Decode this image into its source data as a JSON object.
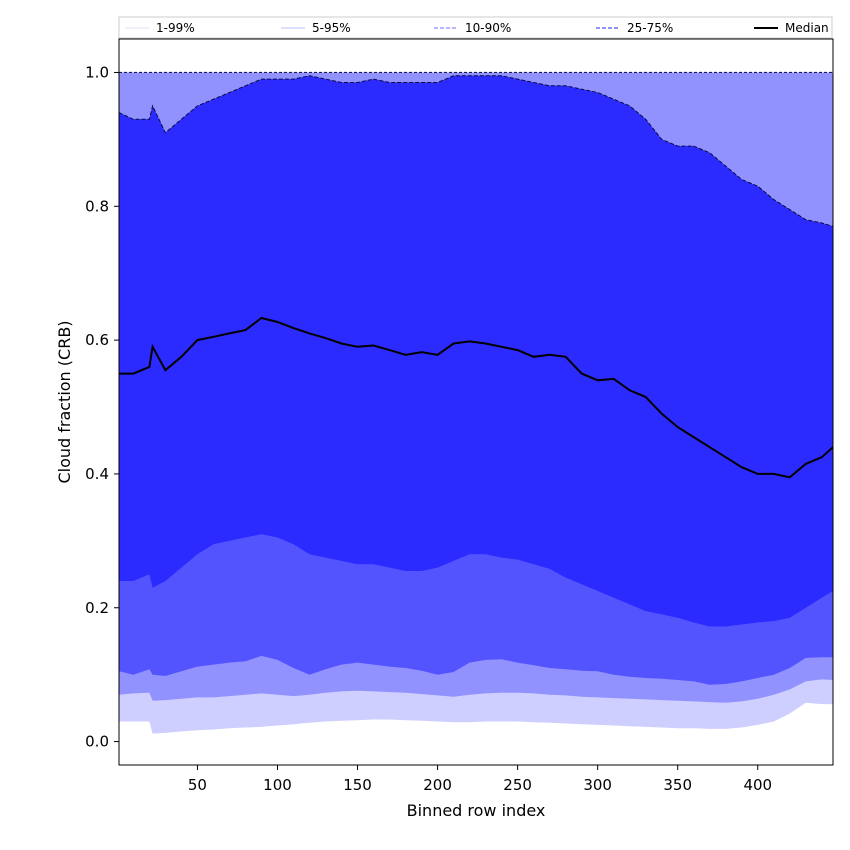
{
  "chart_data": {
    "type": "area",
    "xlabel": "Binned row index",
    "ylabel": "Cloud fraction (CRB)",
    "xlim": [
      1,
      447
    ],
    "ylim": [
      -0.035,
      1.05
    ],
    "x_ticks": [
      50,
      100,
      150,
      200,
      250,
      300,
      350,
      400
    ],
    "y_ticks": [
      0.0,
      0.2,
      0.4,
      0.6,
      0.8,
      1.0
    ],
    "y_tick_labels": [
      "0.0",
      "0.2",
      "0.4",
      "0.6",
      "0.8",
      "1.0"
    ],
    "grid": false,
    "legend": {
      "placement": "top, above plot",
      "entries": [
        {
          "label": "1-99%",
          "color": "#e6e6ff",
          "style": "solid"
        },
        {
          "label": "5-95%",
          "color": "#c9c9ff",
          "style": "solid"
        },
        {
          "label": "10-90%",
          "color": "#8c8cff",
          "style": "dashed"
        },
        {
          "label": "25-75%",
          "color": "#5252ff",
          "style": "dashed"
        },
        {
          "label": "Median",
          "color": "#000000",
          "style": "solid"
        }
      ]
    },
    "x": [
      1,
      10,
      20,
      22,
      30,
      40,
      50,
      60,
      70,
      80,
      90,
      100,
      110,
      120,
      130,
      140,
      150,
      160,
      170,
      180,
      190,
      200,
      210,
      220,
      230,
      240,
      250,
      260,
      270,
      280,
      290,
      300,
      310,
      320,
      330,
      340,
      350,
      360,
      370,
      380,
      390,
      400,
      410,
      420,
      430,
      440,
      447
    ],
    "bands": [
      {
        "name": "1-99%",
        "color": "#cfcfff",
        "lower": [
          0.03,
          0.03,
          0.03,
          0.012,
          0.013,
          0.015,
          0.017,
          0.018,
          0.02,
          0.021,
          0.022,
          0.024,
          0.026,
          0.028,
          0.03,
          0.031,
          0.032,
          0.033,
          0.033,
          0.032,
          0.031,
          0.03,
          0.029,
          0.029,
          0.03,
          0.03,
          0.03,
          0.029,
          0.028,
          0.027,
          0.026,
          0.025,
          0.024,
          0.023,
          0.022,
          0.021,
          0.02,
          0.02,
          0.019,
          0.019,
          0.021,
          0.025,
          0.03,
          0.042,
          0.058,
          0.056,
          0.056
        ],
        "upper": [
          1.0,
          1.0,
          1.0,
          1.0,
          1.0,
          1.0,
          1.0,
          1.0,
          1.0,
          1.0,
          1.0,
          1.0,
          1.0,
          1.0,
          1.0,
          1.0,
          1.0,
          1.0,
          1.0,
          1.0,
          1.0,
          1.0,
          1.0,
          1.0,
          1.0,
          1.0,
          1.0,
          1.0,
          1.0,
          1.0,
          1.0,
          1.0,
          1.0,
          1.0,
          1.0,
          1.0,
          1.0,
          1.0,
          1.0,
          1.0,
          1.0,
          1.0,
          1.0,
          1.0,
          1.0,
          1.0,
          1.0
        ]
      },
      {
        "name": "5-95%",
        "color": "#9292ff",
        "lower": [
          0.07,
          0.072,
          0.073,
          0.061,
          0.062,
          0.064,
          0.066,
          0.066,
          0.068,
          0.07,
          0.072,
          0.07,
          0.068,
          0.07,
          0.073,
          0.075,
          0.076,
          0.075,
          0.074,
          0.073,
          0.071,
          0.069,
          0.067,
          0.07,
          0.072,
          0.073,
          0.073,
          0.072,
          0.07,
          0.069,
          0.067,
          0.066,
          0.065,
          0.064,
          0.063,
          0.062,
          0.061,
          0.06,
          0.059,
          0.058,
          0.06,
          0.064,
          0.07,
          0.078,
          0.09,
          0.093,
          0.092
        ],
        "upper": [
          1.0,
          1.0,
          1.0,
          1.0,
          1.0,
          1.0,
          1.0,
          1.0,
          1.0,
          1.0,
          1.0,
          1.0,
          1.0,
          1.0,
          1.0,
          1.0,
          1.0,
          1.0,
          1.0,
          1.0,
          1.0,
          1.0,
          1.0,
          1.0,
          1.0,
          1.0,
          1.0,
          1.0,
          1.0,
          1.0,
          1.0,
          1.0,
          1.0,
          1.0,
          1.0,
          1.0,
          1.0,
          1.0,
          1.0,
          1.0,
          1.0,
          1.0,
          1.0,
          1.0,
          1.0,
          1.0,
          1.0
        ]
      },
      {
        "name": "10-90%",
        "color": "#5454ff",
        "lower": [
          0.105,
          0.1,
          0.108,
          0.1,
          0.098,
          0.105,
          0.112,
          0.115,
          0.118,
          0.12,
          0.128,
          0.122,
          0.11,
          0.1,
          0.108,
          0.115,
          0.118,
          0.115,
          0.112,
          0.11,
          0.106,
          0.1,
          0.104,
          0.118,
          0.122,
          0.123,
          0.118,
          0.114,
          0.11,
          0.108,
          0.106,
          0.105,
          0.1,
          0.097,
          0.095,
          0.094,
          0.092,
          0.09,
          0.085,
          0.086,
          0.09,
          0.095,
          0.1,
          0.11,
          0.125,
          0.126,
          0.126
        ],
        "upper": [
          0.94,
          0.93,
          0.93,
          0.95,
          0.91,
          0.93,
          0.95,
          0.96,
          0.97,
          0.98,
          0.99,
          0.99,
          0.99,
          0.995,
          0.99,
          0.985,
          0.985,
          0.99,
          0.985,
          0.985,
          0.985,
          0.985,
          0.995,
          0.995,
          0.995,
          0.995,
          0.99,
          0.985,
          0.98,
          0.98,
          0.975,
          0.97,
          0.96,
          0.95,
          0.93,
          0.9,
          0.89,
          0.89,
          0.88,
          0.86,
          0.84,
          0.83,
          0.81,
          0.795,
          0.78,
          0.775,
          0.77
        ]
      },
      {
        "name": "25-75%",
        "color": "#2b2bff",
        "lower": [
          0.24,
          0.24,
          0.25,
          0.23,
          0.24,
          0.26,
          0.28,
          0.295,
          0.3,
          0.305,
          0.31,
          0.305,
          0.295,
          0.28,
          0.275,
          0.27,
          0.265,
          0.265,
          0.26,
          0.255,
          0.255,
          0.26,
          0.27,
          0.28,
          0.28,
          0.275,
          0.272,
          0.265,
          0.258,
          0.245,
          0.235,
          0.225,
          0.215,
          0.205,
          0.195,
          0.19,
          0.185,
          0.178,
          0.172,
          0.172,
          0.175,
          0.178,
          0.18,
          0.185,
          0.2,
          0.215,
          0.225
        ],
        "upper": [
          0.94,
          0.93,
          0.93,
          0.95,
          0.91,
          0.93,
          0.95,
          0.96,
          0.97,
          0.98,
          0.99,
          0.99,
          0.99,
          0.995,
          0.99,
          0.985,
          0.985,
          0.99,
          0.985,
          0.985,
          0.985,
          0.985,
          0.995,
          0.995,
          0.995,
          0.995,
          0.99,
          0.985,
          0.98,
          0.98,
          0.975,
          0.97,
          0.96,
          0.95,
          0.93,
          0.9,
          0.89,
          0.89,
          0.88,
          0.86,
          0.84,
          0.83,
          0.81,
          0.795,
          0.78,
          0.775,
          0.77
        ]
      }
    ],
    "series": [
      {
        "name": "Median",
        "color": "#000000",
        "values": [
          0.55,
          0.55,
          0.56,
          0.59,
          0.555,
          0.575,
          0.6,
          0.605,
          0.61,
          0.615,
          0.633,
          0.627,
          0.618,
          0.61,
          0.603,
          0.595,
          0.59,
          0.592,
          0.585,
          0.578,
          0.582,
          0.578,
          0.595,
          0.598,
          0.595,
          0.59,
          0.585,
          0.575,
          0.578,
          0.575,
          0.55,
          0.54,
          0.542,
          0.525,
          0.515,
          0.49,
          0.47,
          0.455,
          0.44,
          0.425,
          0.41,
          0.4,
          0.4,
          0.395,
          0.415,
          0.425,
          0.44
        ]
      },
      {
        "name": "upper-edge",
        "color": "#0b0b40",
        "values": [
          0.94,
          0.93,
          0.93,
          0.95,
          0.91,
          0.93,
          0.95,
          0.96,
          0.97,
          0.98,
          0.99,
          0.99,
          0.99,
          0.995,
          0.99,
          0.985,
          0.985,
          0.99,
          0.985,
          0.985,
          0.985,
          0.985,
          0.995,
          0.995,
          0.995,
          0.995,
          0.99,
          0.985,
          0.98,
          0.98,
          0.975,
          0.97,
          0.96,
          0.95,
          0.93,
          0.9,
          0.89,
          0.89,
          0.88,
          0.86,
          0.84,
          0.83,
          0.81,
          0.795,
          0.78,
          0.775,
          0.77
        ]
      }
    ]
  }
}
